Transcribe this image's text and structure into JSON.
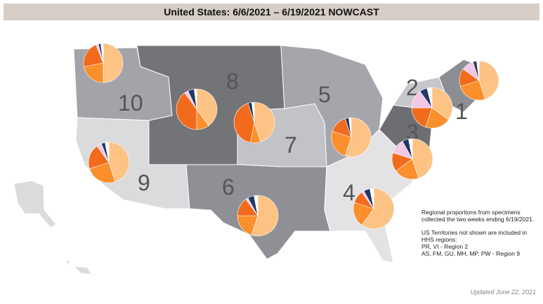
{
  "title": "United States: 6/6/2021 – 6/19/2021 NOWCAST",
  "regions": [
    {
      "label": "10",
      "color": "#a2a4aa"
    },
    {
      "label": "9",
      "color": "#dadbdd"
    },
    {
      "label": "8",
      "color": "#737478"
    },
    {
      "label": "7",
      "color": "#c2c3c6"
    },
    {
      "label": "6",
      "color": "#8f9095"
    },
    {
      "label": "5",
      "color": "#a5a6ab"
    },
    {
      "label": "4",
      "color": "#e3e3e5"
    },
    {
      "label": "3",
      "color": "#6d6e73"
    },
    {
      "label": "2",
      "color": "#c6c7ca"
    },
    {
      "label": "1",
      "color": "#8d8e93"
    }
  ],
  "pie_colors": [
    "#fdc385",
    "#fa8f2c",
    "#f26b1d",
    "#f3c7e6",
    "#1f3864",
    "#ffffff"
  ],
  "pies": [
    {
      "region": "10",
      "values": [
        50,
        22,
        22,
        2,
        2,
        2
      ]
    },
    {
      "region": "8",
      "values": [
        40,
        10,
        40,
        3,
        5,
        2
      ]
    },
    {
      "region": "7",
      "values": [
        45,
        8,
        42,
        0,
        3,
        2
      ]
    },
    {
      "region": "5",
      "values": [
        55,
        25,
        15,
        0,
        3,
        2
      ]
    },
    {
      "region": "2",
      "values": [
        35,
        20,
        20,
        15,
        6,
        4
      ]
    },
    {
      "region": "1",
      "values": [
        45,
        25,
        15,
        10,
        3,
        2
      ]
    },
    {
      "region": "3",
      "values": [
        45,
        20,
        15,
        12,
        5,
        3
      ]
    },
    {
      "region": "9",
      "values": [
        45,
        25,
        20,
        4,
        3,
        3
      ]
    },
    {
      "region": "6",
      "values": [
        55,
        20,
        15,
        2,
        5,
        3
      ]
    },
    {
      "region": "4",
      "values": [
        60,
        20,
        10,
        2,
        5,
        3
      ]
    }
  ],
  "note": {
    "para1": "Regional proportions from specimens collected the two weeks ending 6/19/2021.",
    "para2_lines": [
      "US Territories not shown are included in HHS regions:",
      "PR, VI - Region 2",
      "AS, FM, GU, MH, MP, PW - Region 9"
    ]
  },
  "updated": "Updated June 22, 2021"
}
